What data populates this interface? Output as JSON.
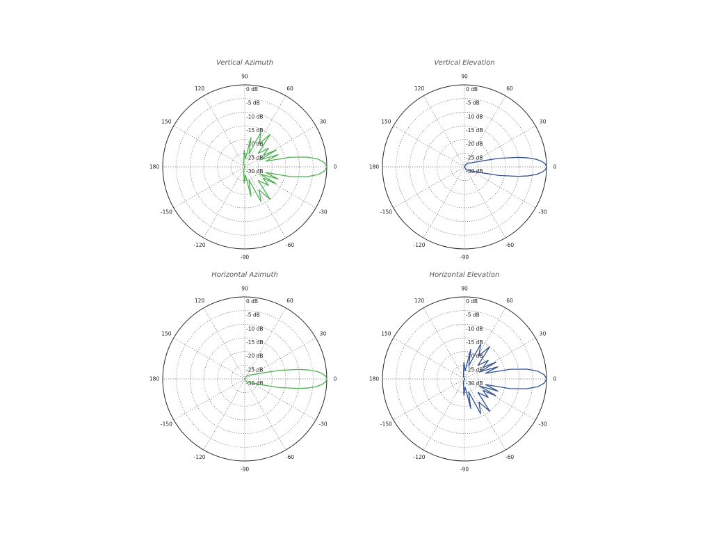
{
  "chart_data": [
    {
      "type": "polar-line",
      "title": "Vertical Azimuth",
      "color": "#4caf50",
      "angle_labels": [
        "0",
        "30",
        "60",
        "90",
        "120",
        "150",
        "180",
        "-150",
        "-120",
        "-90",
        "-60",
        "-30"
      ],
      "angle_values_deg": [
        0,
        30,
        60,
        90,
        120,
        150,
        180,
        -150,
        -120,
        -90,
        -60,
        -30
      ],
      "radial_labels": [
        "0 dB",
        "-5 dB",
        "-10 dB",
        "-15 dB",
        "-20 dB",
        "-25 dB",
        "-30 dB"
      ],
      "radial_values_db": [
        0,
        -5,
        -10,
        -15,
        -20,
        -25,
        -30
      ],
      "rlim_db": [
        -30,
        0
      ],
      "series": [
        {
          "angles_deg": [
            0,
            3,
            6,
            9,
            12,
            15,
            20,
            25,
            28,
            32,
            38,
            45,
            52,
            58,
            65,
            72,
            78,
            85,
            92,
            100,
            110,
            125,
            140,
            155,
            170,
            180,
            -170,
            -155,
            -140,
            -125,
            -110,
            -100,
            -92,
            -85,
            -78,
            -72,
            -65,
            -58,
            -52,
            -45,
            -38,
            -32,
            -28,
            -25,
            -20,
            -15,
            -12,
            -9,
            -6,
            -3
          ],
          "gain_db": [
            0,
            -0.8,
            -3,
            -7,
            -13,
            -22,
            -17,
            -24,
            -17,
            -22,
            -19,
            -23,
            -15,
            -20,
            -16,
            -25,
            -19,
            -27,
            -24,
            -28,
            -29,
            -30,
            -30,
            -30,
            -30,
            -30,
            -30,
            -30,
            -30,
            -30,
            -29,
            -28,
            -24,
            -27,
            -19,
            -25,
            -16,
            -20,
            -15,
            -23,
            -19,
            -22,
            -17,
            -24,
            -17,
            -22,
            -13,
            -7,
            -3,
            -0.8
          ]
        }
      ]
    },
    {
      "type": "polar-line",
      "title": "Vertical Elevation",
      "color": "#2f4f8f",
      "angle_labels": [
        "0",
        "30",
        "60",
        "90",
        "120",
        "150",
        "180",
        "-150",
        "-120",
        "-90",
        "-60",
        "-30"
      ],
      "angle_values_deg": [
        0,
        30,
        60,
        90,
        120,
        150,
        180,
        -150,
        -120,
        -90,
        -60,
        -30
      ],
      "radial_labels": [
        "0 dB",
        "-5 dB",
        "-10 dB",
        "-15 dB",
        "-20 dB",
        "-25 dB",
        "-30 dB"
      ],
      "radial_values_db": [
        0,
        -5,
        -10,
        -15,
        -20,
        -25,
        -30
      ],
      "rlim_db": [
        -30,
        0
      ],
      "series": [
        {
          "angles_deg": [
            0,
            2,
            4,
            6,
            8,
            10,
            14,
            20,
            30,
            45,
            60,
            90,
            120,
            150,
            180,
            -150,
            -120,
            -90,
            -60,
            -45,
            -30,
            -20,
            -14,
            -10,
            -8,
            -6,
            -4,
            -2
          ],
          "gain_db": [
            0,
            -0.4,
            -1.6,
            -3.6,
            -6.4,
            -10,
            -17,
            -24,
            -27,
            -28,
            -29,
            -30,
            -30,
            -30,
            -30,
            -30,
            -30,
            -30,
            -29,
            -28,
            -27,
            -24,
            -17,
            -10,
            -6.4,
            -3.6,
            -1.6,
            -0.4
          ]
        }
      ]
    },
    {
      "type": "polar-line",
      "title": "Horizontal Azimuth",
      "color": "#4caf50",
      "angle_labels": [
        "0",
        "30",
        "60",
        "90",
        "120",
        "150",
        "180",
        "-150",
        "-120",
        "-90",
        "-60",
        "-30"
      ],
      "angle_values_deg": [
        0,
        30,
        60,
        90,
        120,
        150,
        180,
        -150,
        -120,
        -90,
        -60,
        -30
      ],
      "radial_labels": [
        "0 dB",
        "-5 dB",
        "-10 dB",
        "-15 dB",
        "-20 dB",
        "-25 dB",
        "-30 dB"
      ],
      "radial_values_db": [
        0,
        -5,
        -10,
        -15,
        -20,
        -25,
        -30
      ],
      "rlim_db": [
        -30,
        0
      ],
      "series": [
        {
          "angles_deg": [
            0,
            2,
            4,
            6,
            8,
            10,
            14,
            20,
            30,
            45,
            60,
            90,
            120,
            150,
            180,
            -150,
            -120,
            -90,
            -60,
            -45,
            -30,
            -20,
            -14,
            -10,
            -8,
            -6,
            -4,
            -2
          ],
          "gain_db": [
            0,
            -0.4,
            -1.6,
            -3.6,
            -6.4,
            -10,
            -17,
            -24,
            -27,
            -28,
            -29,
            -30,
            -30,
            -30,
            -30,
            -30,
            -30,
            -30,
            -29,
            -28,
            -27,
            -24,
            -17,
            -10,
            -6.4,
            -3.6,
            -1.6,
            -0.4
          ]
        }
      ]
    },
    {
      "type": "polar-line",
      "title": "Horizontal Elevation",
      "color": "#2f4f8f",
      "angle_labels": [
        "0",
        "30",
        "60",
        "90",
        "120",
        "150",
        "180",
        "-150",
        "-120",
        "-90",
        "-60",
        "-30"
      ],
      "angle_values_deg": [
        0,
        30,
        60,
        90,
        120,
        150,
        180,
        -150,
        -120,
        -90,
        -60,
        -30
      ],
      "radial_labels": [
        "0 dB",
        "-5 dB",
        "-10 dB",
        "-15 dB",
        "-20 dB",
        "-25 dB",
        "-30 dB"
      ],
      "radial_values_db": [
        0,
        -5,
        -10,
        -15,
        -20,
        -25,
        -30
      ],
      "rlim_db": [
        -30,
        0
      ],
      "series": [
        {
          "angles_deg": [
            0,
            3,
            6,
            9,
            12,
            15,
            20,
            25,
            28,
            32,
            38,
            45,
            52,
            58,
            65,
            72,
            78,
            85,
            92,
            100,
            110,
            125,
            140,
            155,
            170,
            180,
            -170,
            -155,
            -140,
            -125,
            -110,
            -100,
            -92,
            -85,
            -78,
            -72,
            -65,
            -58,
            -52,
            -45,
            -38,
            -32,
            -28,
            -25,
            -20,
            -15,
            -12,
            -9,
            -6,
            -3
          ],
          "gain_db": [
            0,
            -0.8,
            -3,
            -7,
            -13,
            -22,
            -17,
            -24,
            -17,
            -22,
            -19,
            -23,
            -15,
            -20,
            -16,
            -25,
            -19,
            -27,
            -24,
            -28,
            -29,
            -30,
            -30,
            -30,
            -30,
            -30,
            -30,
            -30,
            -30,
            -30,
            -29,
            -28,
            -24,
            -27,
            -19,
            -25,
            -16,
            -20,
            -15,
            -23,
            -19,
            -22,
            -17,
            -24,
            -17,
            -22,
            -13,
            -7,
            -3,
            -0.8
          ]
        }
      ]
    }
  ]
}
